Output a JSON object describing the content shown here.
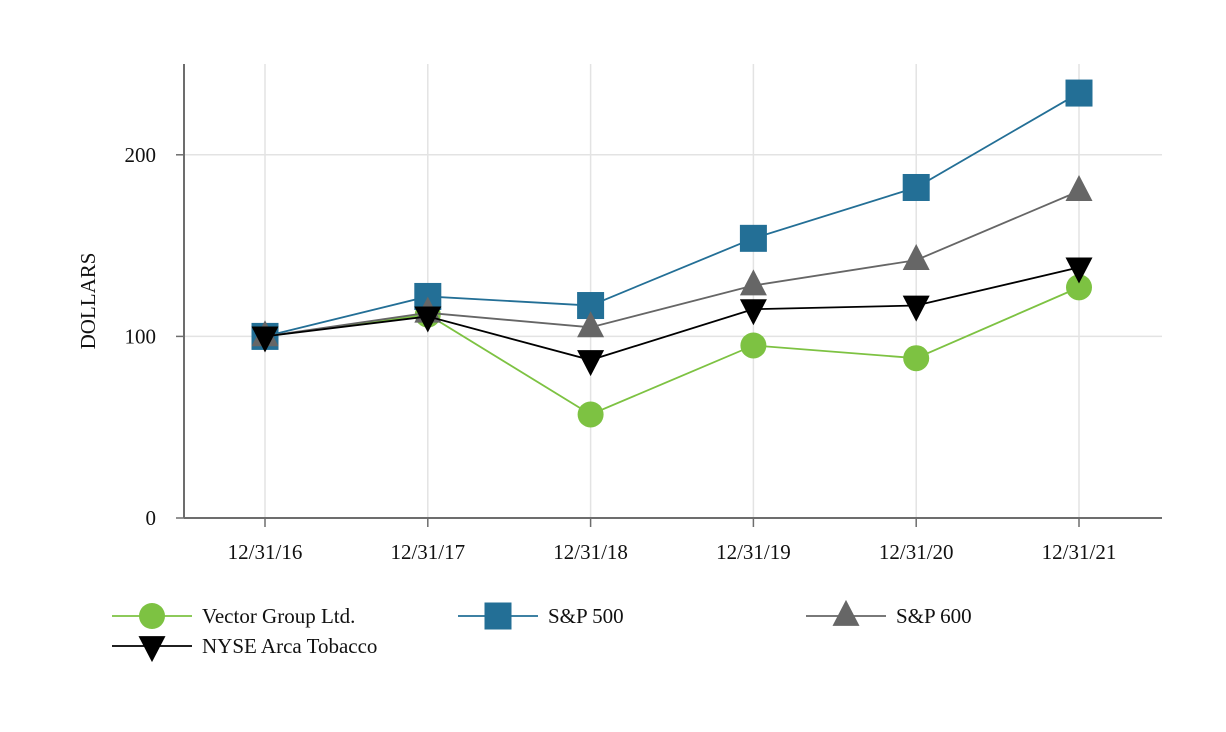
{
  "chart_data": {
    "type": "line",
    "title": "",
    "xlabel": "",
    "ylabel": "DOLLARS",
    "ylim": [
      0,
      250
    ],
    "yticks": [
      "0",
      "100",
      "200"
    ],
    "ytick_values": [
      0,
      100,
      200
    ],
    "categories": [
      "12/31/16",
      "12/31/17",
      "12/31/18",
      "12/31/19",
      "12/31/20",
      "12/31/21"
    ],
    "grid": true,
    "legend_position": "bottom",
    "series": [
      {
        "name": "Vector Group Ltd.",
        "color": "#7dc242",
        "marker": "circle",
        "values": [
          100,
          112,
          57,
          95,
          88,
          127
        ]
      },
      {
        "name": "S&P 500",
        "color": "#236f96",
        "marker": "square",
        "values": [
          100,
          122,
          117,
          154,
          182,
          234
        ]
      },
      {
        "name": "S&P 600",
        "color": "#666666",
        "marker": "triangle-up",
        "values": [
          100,
          113,
          105,
          128,
          142,
          180
        ]
      },
      {
        "name": "NYSE Arca Tobacco",
        "color": "#000000",
        "marker": "triangle-down",
        "values": [
          100,
          111,
          87,
          115,
          117,
          138
        ]
      }
    ]
  }
}
